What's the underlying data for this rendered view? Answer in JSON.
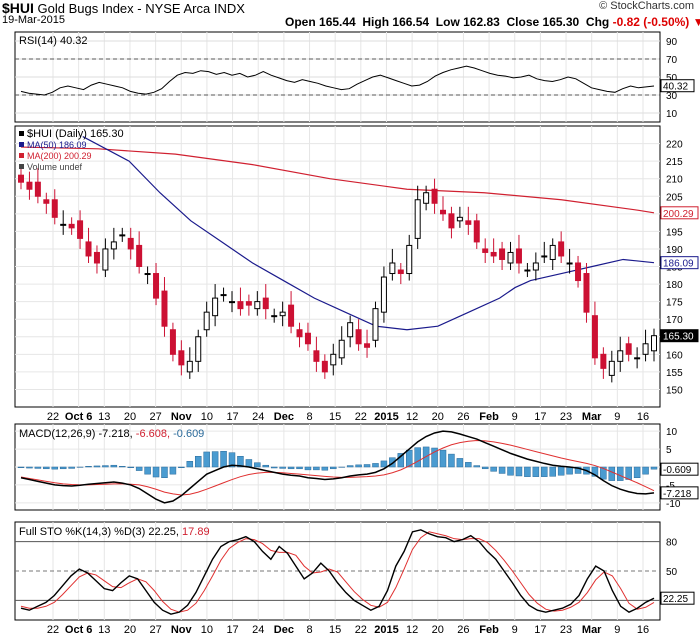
{
  "header": {
    "symbol": "$HUI",
    "name": "Gold Bugs Index - NYSE Arca INDX",
    "date": "19-Mar-2015",
    "open_label": "Open",
    "open": "165.44",
    "high_label": "High",
    "high": "166.54",
    "low_label": "Low",
    "low": "162.83",
    "close_label": "Close",
    "close": "165.30",
    "chg_label": "Chg",
    "chg": "-0.82 (-0.50%)",
    "watermark": "© StockCharts.com"
  },
  "colors": {
    "up": "#000000",
    "down": "#cc1133",
    "ma50": "#1a1a8c",
    "ma200": "#d02030",
    "hist": "#4a9bd0",
    "price_tag": "#000000"
  },
  "chart_data": [
    {
      "type": "line",
      "panel": "rsi",
      "legend": "RSI(14) 40.32",
      "ylim": [
        0,
        100
      ],
      "yticks": [
        10,
        30,
        50,
        70,
        90
      ],
      "reference_lines": [
        30,
        70
      ],
      "last_label": "40.32",
      "values": [
        34,
        32,
        31,
        30,
        33,
        38,
        40,
        38,
        36,
        41,
        44,
        42,
        40,
        38,
        34,
        32,
        31,
        33,
        37,
        45,
        52,
        55,
        54,
        57,
        56,
        53,
        55,
        52,
        54,
        50,
        52,
        56,
        52,
        49,
        46,
        44,
        47,
        45,
        43,
        40,
        38,
        36,
        37,
        42,
        46,
        50,
        52,
        49,
        46,
        43,
        40,
        41,
        45,
        51,
        55,
        58,
        60,
        62,
        60,
        57,
        54,
        52,
        51,
        49,
        50,
        52,
        48,
        46,
        45,
        47,
        50,
        48,
        43,
        38,
        36,
        34,
        33,
        37,
        40,
        38,
        39,
        40
      ]
    },
    {
      "type": "candlestick",
      "panel": "price",
      "legend": [
        "$HUI (Daily) 165.30",
        "MA(50) 186.09",
        "MA(200) 200.29",
        "Volume undef"
      ],
      "ylim": [
        145,
        225
      ],
      "yticks": [
        150,
        155,
        160,
        165,
        170,
        175,
        180,
        185,
        190,
        195,
        200,
        205,
        210,
        215,
        220
      ],
      "x_labels": [
        "22",
        "Oct 6",
        "13",
        "20",
        "27",
        "Nov",
        "10",
        "17",
        "24",
        "Dec",
        "8",
        "15",
        "22",
        "2015",
        "12",
        "20",
        "26",
        "Feb",
        "9",
        "17",
        "23",
        "Mar",
        "9",
        "16"
      ],
      "last_values": {
        "ma200": "200.29",
        "ma50": "186.09",
        "close": "165.30"
      },
      "closes": [
        209,
        207,
        205,
        203,
        199,
        197,
        196,
        193,
        188,
        186,
        190,
        192,
        194,
        190,
        185,
        183,
        176,
        168,
        160,
        157,
        158,
        165,
        172,
        176,
        177,
        175,
        173,
        174,
        175,
        173,
        171,
        172,
        168,
        165,
        163,
        158,
        155,
        160,
        164,
        169,
        163,
        162,
        173,
        182,
        186,
        183,
        191,
        204,
        206,
        203,
        200,
        196,
        199,
        197,
        192,
        189,
        188,
        187,
        189,
        186,
        184,
        186,
        188,
        191,
        188,
        186,
        181,
        172,
        159,
        156,
        158,
        161,
        160,
        159,
        163,
        165.3
      ],
      "ma50": [
        null,
        null,
        null,
        null,
        null,
        null,
        null,
        null,
        null,
        null,
        null,
        null,
        null,
        null,
        null,
        null,
        null,
        null,
        null,
        null,
        null,
        null,
        null,
        null,
        null,
        null,
        null,
        null,
        null,
        null,
        null,
        null,
        null,
        null,
        null,
        null,
        null,
        null,
        null,
        null,
        null,
        null,
        null,
        null,
        null,
        null,
        null,
        null,
        null,
        null,
        null,
        null,
        null,
        null,
        null,
        null,
        null,
        null,
        null,
        null,
        null,
        null,
        null,
        null,
        null,
        null,
        null,
        null,
        null,
        null,
        null,
        null,
        null,
        null,
        null,
        null
      ],
      "ma200_note": "",
      "ma50_curve": [
        [
          0,
          null
        ],
        [
          8,
          222
        ],
        [
          14,
          215
        ],
        [
          18,
          206
        ],
        [
          22,
          198
        ],
        [
          26,
          192
        ],
        [
          30,
          186
        ],
        [
          34,
          181
        ],
        [
          38,
          176
        ],
        [
          42,
          172
        ],
        [
          46,
          168
        ],
        [
          50,
          167
        ],
        [
          54,
          168
        ],
        [
          58,
          172
        ],
        [
          62,
          176
        ],
        [
          64,
          179
        ],
        [
          66,
          181
        ],
        [
          70,
          183
        ],
        [
          74,
          185
        ],
        [
          78,
          187
        ],
        [
          82,
          186.09
        ]
      ],
      "ma200_curve": [
        [
          0,
          219
        ],
        [
          10,
          218.5
        ],
        [
          20,
          217
        ],
        [
          30,
          214
        ],
        [
          40,
          210
        ],
        [
          50,
          207
        ],
        [
          60,
          206
        ],
        [
          70,
          204
        ],
        [
          80,
          201
        ],
        [
          82,
          200.29
        ]
      ]
    },
    {
      "type": "line",
      "panel": "macd",
      "legend": "MACD(12,26,9) -7.218, -6.608, -0.609",
      "legend_parts": {
        "name": "MACD(12,26,9)",
        "macd": "-7.218",
        "signal": "-6.608",
        "hist": "-0.609"
      },
      "ylim": [
        -12,
        12
      ],
      "yticks": [
        -10,
        -5,
        0,
        5,
        10
      ],
      "last_labels": {
        "hist": "-0.609",
        "macd": "-7.218"
      },
      "macd": [
        -3,
        -3.5,
        -4,
        -4.5,
        -5,
        -5.2,
        -5.3,
        -5.1,
        -4.8,
        -4.6,
        -4.4,
        -4.2,
        -4.5,
        -5,
        -6,
        -7.5,
        -9,
        -10,
        -9.5,
        -8,
        -6,
        -4,
        -2,
        -1,
        0,
        0.5,
        0.3,
        0,
        -0.5,
        -1,
        -1.5,
        -2,
        -2.3,
        -2.5,
        -3,
        -3.2,
        -3.5,
        -3.3,
        -3,
        -2.5,
        -2.2,
        -2,
        -1.5,
        -0.5,
        1,
        3,
        5,
        7,
        8.5,
        9.5,
        10,
        9.8,
        9.2,
        8.5,
        7.8,
        6.8,
        5.8,
        4.8,
        3.8,
        3,
        2.2,
        1.6,
        1,
        0.5,
        0.2,
        0,
        -0.3,
        -1,
        -2.2,
        -3.8,
        -5.2,
        -6.2,
        -6.9,
        -7.4,
        -7.5,
        -7.218
      ],
      "signal": [
        -2.8,
        -3.2,
        -3.6,
        -4,
        -4.4,
        -4.7,
        -4.9,
        -5,
        -5,
        -4.9,
        -4.8,
        -4.7,
        -4.7,
        -4.8,
        -5,
        -5.5,
        -6.2,
        -7,
        -7.5,
        -7.8,
        -7.6,
        -7,
        -6.2,
        -5.3,
        -4.4,
        -3.5,
        -2.7,
        -2.1,
        -1.7,
        -1.5,
        -1.5,
        -1.6,
        -1.8,
        -2,
        -2.2,
        -2.4,
        -2.6,
        -2.8,
        -2.9,
        -2.9,
        -2.8,
        -2.7,
        -2.5,
        -2.2,
        -1.6,
        -0.8,
        0.3,
        1.6,
        2.9,
        4.2,
        5.3,
        6.2,
        6.8,
        7.2,
        7.4,
        7.3,
        7,
        6.6,
        6.1,
        5.5,
        4.9,
        4.3,
        3.7,
        3.1,
        2.5,
        2,
        1.5,
        1,
        0.4,
        -0.4,
        -1.4,
        -2.4,
        -3.4,
        -4.4,
        -5.5,
        -6.608
      ]
    },
    {
      "type": "line",
      "panel": "stochastic",
      "legend": "Full STO %K(14,3) %D(3) 22.25, 17.89",
      "legend_parts": {
        "name": "Full STO %K(14,3) %D(3)",
        "k": "22.25",
        "d": "17.89"
      },
      "ylim": [
        0,
        100
      ],
      "yticks": [
        20,
        50,
        80
      ],
      "last_label": "22.25",
      "k": [
        12,
        10,
        14,
        18,
        25,
        35,
        45,
        52,
        48,
        40,
        32,
        30,
        38,
        45,
        42,
        30,
        18,
        10,
        6,
        8,
        15,
        28,
        45,
        62,
        75,
        80,
        82,
        85,
        80,
        70,
        62,
        75,
        68,
        55,
        42,
        48,
        58,
        50,
        38,
        28,
        20,
        15,
        10,
        14,
        30,
        55,
        70,
        90,
        92,
        88,
        85,
        84,
        80,
        82,
        86,
        80,
        70,
        62,
        50,
        38,
        25,
        15,
        10,
        8,
        10,
        12,
        16,
        25,
        42,
        55,
        50,
        30,
        14,
        8,
        12,
        18,
        22.25
      ],
      "d": [
        14,
        12,
        12,
        14,
        18,
        26,
        35,
        44,
        48,
        46,
        40,
        34,
        33,
        38,
        42,
        39,
        30,
        19,
        11,
        8,
        10,
        17,
        30,
        45,
        61,
        73,
        79,
        83,
        82,
        78,
        71,
        69,
        69,
        66,
        55,
        48,
        49,
        52,
        49,
        39,
        29,
        21,
        15,
        13,
        18,
        33,
        52,
        72,
        84,
        90,
        88,
        86,
        83,
        82,
        83,
        83,
        79,
        71,
        61,
        50,
        38,
        26,
        17,
        11,
        9,
        10,
        13,
        18,
        28,
        41,
        49,
        45,
        32,
        17,
        11,
        13,
        17.89
      ]
    }
  ],
  "bottom_axis_labels": [
    "22",
    "Oct 6",
    "13",
    "20",
    "27",
    "Nov",
    "10",
    "17",
    "24",
    "Dec",
    "8",
    "15",
    "22",
    "2015",
    "12",
    "20",
    "26",
    "Feb",
    "9",
    "17",
    "23",
    "Mar",
    "9",
    "16"
  ]
}
